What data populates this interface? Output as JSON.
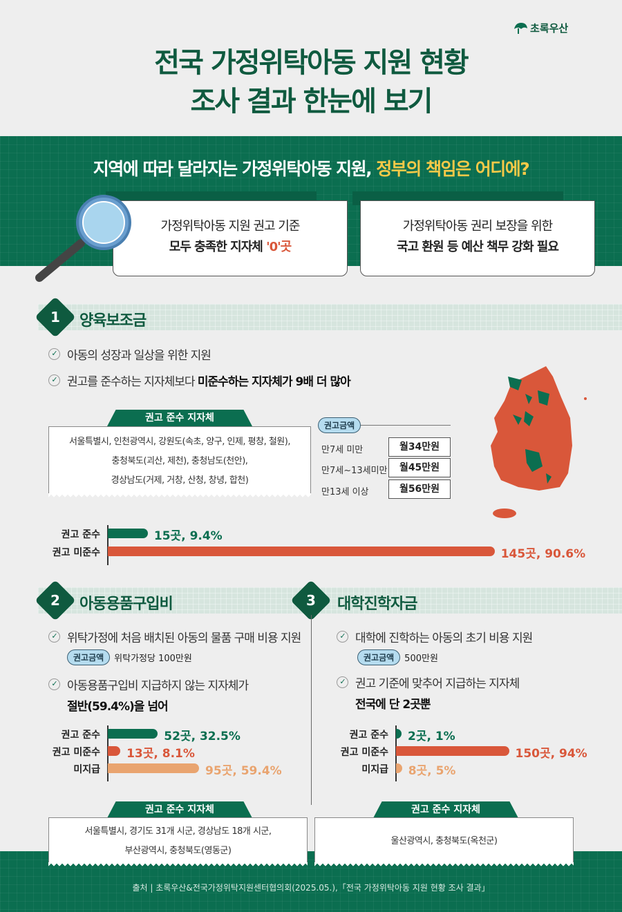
{
  "logo": {
    "text": "초록우산"
  },
  "title": {
    "line1": "전국 가정위탁아동 지원 현황",
    "line2": "조사 결과 한눈에 보기"
  },
  "band": {
    "question_a": "지역에 따라 달라지는 가정위탁아동 지원, ",
    "question_b": "정부의 책임은 어디에?",
    "card1": {
      "line1": "가정위탁아동 지원 권고 기준",
      "line2": "모두 충족한 지자체 ",
      "highlight": "'0'곳"
    },
    "card2": {
      "line1": "가정위탁아동 권리 보장을 위한",
      "line2": "국고 환원 등 예산 책무 강화 필요"
    }
  },
  "colors": {
    "green": "#0b6e50",
    "dark_green": "#0f5a3f",
    "orange": "#d9573a",
    "light_orange": "#e9a46f",
    "yellow": "#f7c948"
  },
  "section1": {
    "num": "1",
    "title": "양육보조금",
    "bullets": [
      "아동의 성장과 일상을 위한 지원"
    ],
    "bullet2_a": "권고를 준수하는 지자체보다 ",
    "bullet2_b": "미준수하는 지자체가 9배 더 많아",
    "compliant_tab": "권고 준수 지자체",
    "compliant_lines": [
      "서울특별시, 인천광역시, 강원도(속초, 양구, 인제, 평창, 철원),",
      "충청북도(괴산, 제천), 충청남도(천안),",
      "경상남도(거제, 거창, 산청, 창녕, 합천)"
    ],
    "amount_tab": "권고금액",
    "amounts": [
      {
        "age": "만7세 미만",
        "value": "월34만원"
      },
      {
        "age": "만7세~13세미만",
        "value": "월45만원"
      },
      {
        "age": "만13세 이상",
        "value": "월56만원"
      }
    ]
  },
  "section2": {
    "num": "2",
    "title": "아동용품구입비",
    "bullet1": "위탁가정에 처음 배치된 아동의 물품 구매 비용 지원",
    "pill": "권고금액",
    "amount": "위탁가정당 100만원",
    "bullet2": "아동용품구입비 지급하지 않는 지자체가",
    "bullet2_bold": "절반(59.4%)을 넘어",
    "compliant_tab": "권고 준수 지자체",
    "compliant_lines": [
      "서울특별시, 경기도 31개 시군, 경상남도 18개 시군,",
      "부산광역시, 충청북도(영동군)"
    ]
  },
  "section3": {
    "num": "3",
    "title": "대학진학자금",
    "bullet1": "대학에 진학하는 아동의 초기 비용 지원",
    "pill": "권고금액",
    "amount": "500만원",
    "bullet2": "권고 기준에 맞추어 지급하는 지자체",
    "bullet2_bold": "전국에 단 2곳뿐",
    "compliant_tab": "권고 준수 지자체",
    "compliant_lines": [
      "울산광역시, 충청북도(옥천군)"
    ]
  },
  "chart_data": [
    {
      "type": "bar",
      "orientation": "horizontal",
      "categories": [
        "권고 준수",
        "권고 미준수"
      ],
      "values": [
        15,
        145
      ],
      "percents": [
        9.4,
        90.6
      ],
      "labels": [
        "15곳, 9.4%",
        "145곳, 90.6%"
      ],
      "colors": [
        "#0b6e50",
        "#d9573a"
      ]
    },
    {
      "type": "bar",
      "orientation": "horizontal",
      "categories": [
        "권고 준수",
        "권고 미준수",
        "미지급"
      ],
      "values": [
        52,
        13,
        95
      ],
      "percents": [
        32.5,
        8.1,
        59.4
      ],
      "labels": [
        "52곳, 32.5%",
        "13곳, 8.1%",
        "95곳, 59.4%"
      ],
      "colors": [
        "#0b6e50",
        "#d9573a",
        "#e9a46f"
      ]
    },
    {
      "type": "bar",
      "orientation": "horizontal",
      "categories": [
        "권고 준수",
        "권고 미준수",
        "미지급"
      ],
      "values": [
        2,
        150,
        8
      ],
      "percents": [
        1,
        94,
        5
      ],
      "labels": [
        "2곳, 1%",
        "150곳, 94%",
        "8곳, 5%"
      ],
      "colors": [
        "#0b6e50",
        "#d9573a",
        "#e9a46f"
      ]
    }
  ],
  "footer": {
    "source": "출처 | 초록우산&전국가정위탁지원센터협의회(2025.05.),「전국 가정위탁아동 지원 현황 조사 결과」"
  }
}
